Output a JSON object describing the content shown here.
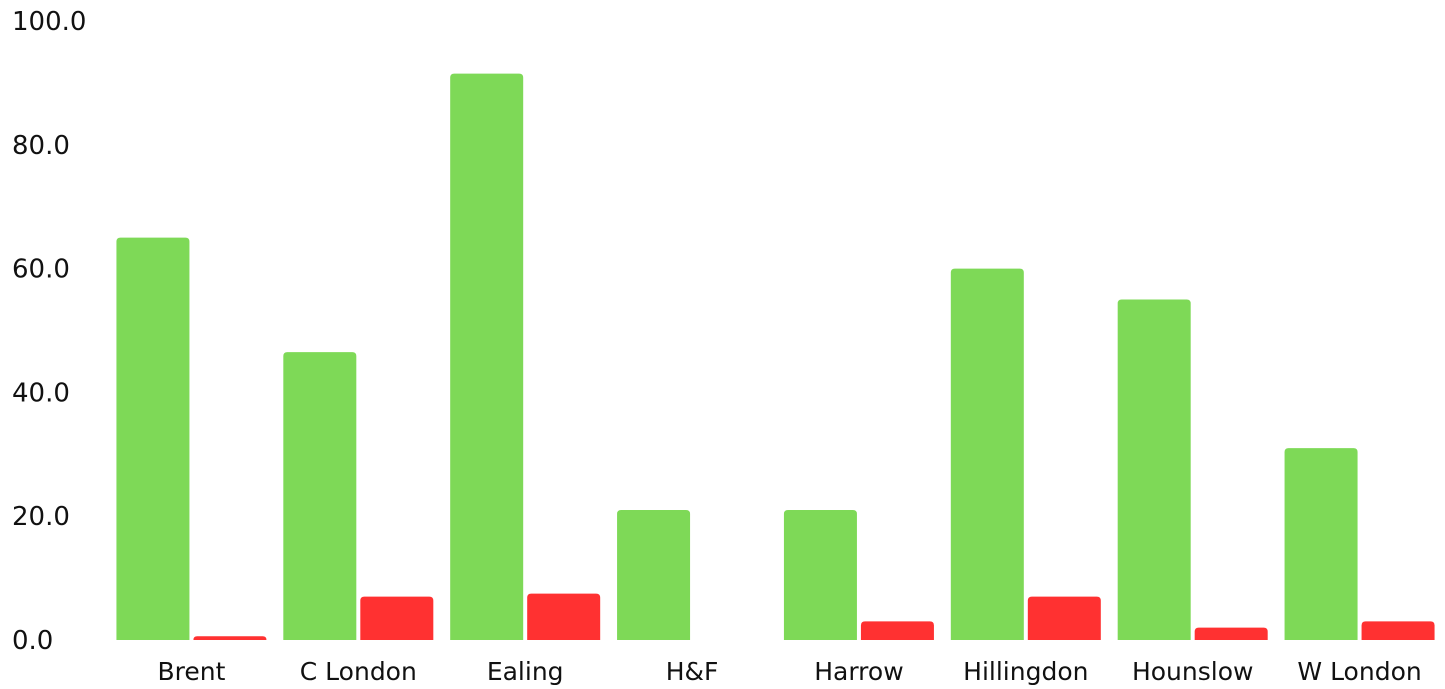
{
  "chart_data": {
    "type": "bar",
    "title": "",
    "xlabel": "",
    "ylabel": "",
    "categories": [
      "Brent",
      "C London",
      "Ealing",
      "H&F",
      "Harrow",
      "Hillingdon",
      "Hounslow",
      "W London"
    ],
    "series": [
      {
        "color": "#7ed957",
        "values": [
          65.0,
          46.5,
          91.5,
          21.0,
          21.0,
          60.0,
          55.0,
          31.0
        ]
      },
      {
        "color": "#ff3131",
        "values": [
          0.6,
          7.0,
          7.5,
          0.0,
          3.0,
          7.0,
          2.0,
          3.0
        ]
      }
    ],
    "ylim": [
      0,
      100
    ],
    "yticks": [
      0,
      20,
      40,
      60,
      80,
      100
    ],
    "ytick_labels": [
      "0.0",
      "20.0",
      "40.0",
      "60.0",
      "80.0",
      "100.0"
    ],
    "grid": false,
    "legend": "none"
  }
}
